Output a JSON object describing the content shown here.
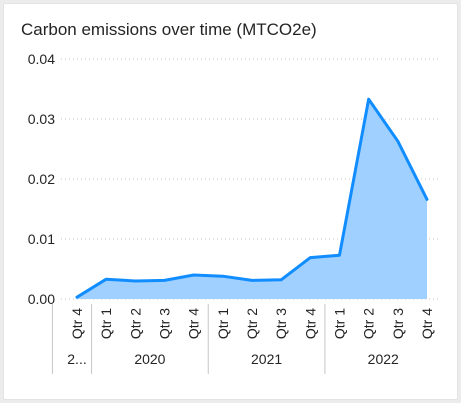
{
  "chart_data": {
    "type": "area",
    "title": "Carbon emissions over time (MTCO2e)",
    "x": [
      "Qtr 4",
      "Qtr 1",
      "Qtr 2",
      "Qtr 3",
      "Qtr 4",
      "Qtr 1",
      "Qtr 2",
      "Qtr 3",
      "Qtr 4",
      "Qtr 1",
      "Qtr 2",
      "Qtr 3",
      "Qtr 4"
    ],
    "year_groups": [
      {
        "label": "2...",
        "count": 1
      },
      {
        "label": "2020",
        "count": 4
      },
      {
        "label": "2021",
        "count": 4
      },
      {
        "label": "2022",
        "count": 4
      }
    ],
    "series": [
      {
        "values": [
          0.0003,
          0.0033,
          0.003,
          0.0031,
          0.004,
          0.0038,
          0.0031,
          0.0032,
          0.0069,
          0.0073,
          0.0333,
          0.0263,
          0.0166
        ]
      }
    ],
    "ylim": [
      0,
      0.04
    ],
    "yticks": [
      "0.00",
      "0.01",
      "0.02",
      "0.03",
      "0.04"
    ],
    "grid": true,
    "legend": "none",
    "colors": {
      "line": "#118dff",
      "area": "#9fd0ff",
      "grid": "#c8c6c4",
      "axis": "#252423"
    }
  }
}
